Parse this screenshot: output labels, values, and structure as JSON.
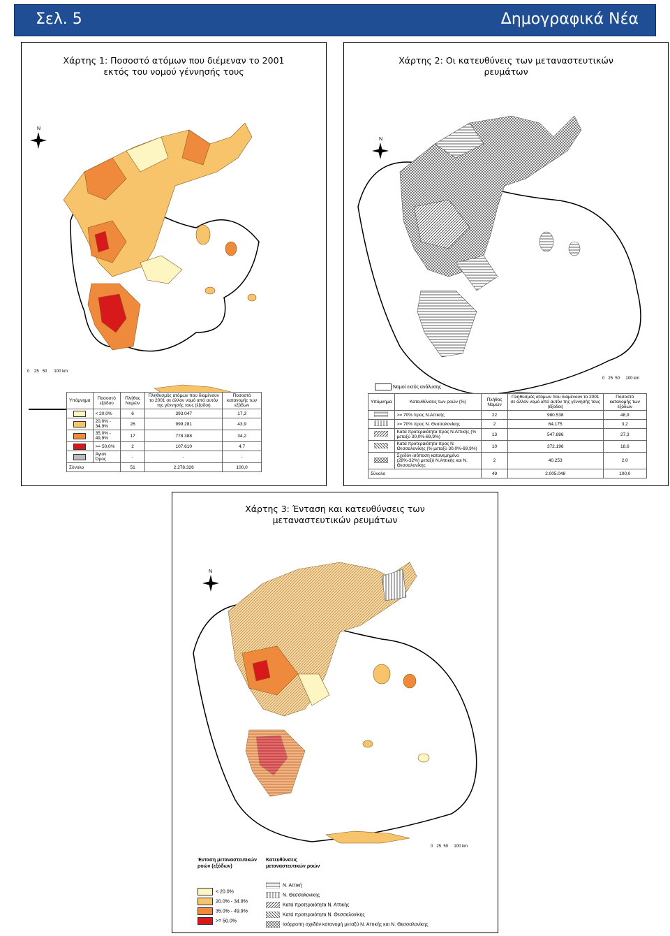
{
  "header": {
    "page": "Σελ. 5",
    "title": "Δημογραφικά Νέα"
  },
  "map1": {
    "title_line1": "Χάρτης 1: Ποσοστό ατόμων που διέμεναν το 2001",
    "title_line2": "εκτός του νομού γέννησής τους",
    "north": "N",
    "scale": [
      "0",
      "25",
      "50",
      "100 km"
    ],
    "legend": {
      "headers": [
        "Υπόμνημα",
        "Ποσοστό εξόδου",
        "Πλήθος Νομών",
        "Πληθυσμός ατόμων που διαμένουν το 2001 σε άλλον νομό από αυτόν της γέννησής τους (έξοδοι)",
        "Ποσοστό κατανομής των εξόδων"
      ],
      "rows": [
        {
          "label": "< 20,0%",
          "count": "6",
          "pop": "393.047",
          "share": "17,3",
          "color": "#fdf6c3"
        },
        {
          "label": "20,0% - 34,9%",
          "count": "26",
          "pop": "999.281",
          "share": "43,9",
          "color": "#f7c36b"
        },
        {
          "label": "35,0% - 49,9%",
          "count": "17",
          "pop": "778.388",
          "share": "34,2",
          "color": "#ef8a3c"
        },
        {
          "label": ">= 50,0%",
          "count": "2",
          "pop": "107.610",
          "share": "4,7",
          "color": "#d7191c"
        },
        {
          "label": "Άγιον Όρος",
          "count": "-",
          "pop": "-",
          "share": "-",
          "color": "#999999"
        }
      ],
      "total": {
        "label": "Σύνολο",
        "count": "51",
        "pop": "2.278.326",
        "share": "100,0"
      }
    }
  },
  "map2": {
    "title_line1": "Χάρτης 2: Οι κατευθύνεις των μεταναστευτικών",
    "title_line2": "ρευμάτων",
    "north": "N",
    "scale": [
      "0",
      "25",
      "50",
      "100 km"
    ],
    "not_analysed": "Νομοί εκτός ανάλυσης",
    "legend": {
      "headers": [
        "Υπόμνημα",
        "Κατευθύνσεις των ροών (%)",
        "Πλήθος Νομών",
        "Πληθυσμός ατόμων που διαμένουν το 2001 σε άλλον νομό από αυτόν της γέννησής τους (έξοδοι)",
        "Ποσοστό κατανομής των εξόδων"
      ],
      "rows": [
        {
          "label": ">= 70% προς Ν.Αττικής",
          "count": "22",
          "pop": "980.538",
          "share": "48,9"
        },
        {
          "label": ">= 70% προς Ν. Θεσσαλονίκης",
          "count": "2",
          "pop": "64.175",
          "share": "3,2"
        },
        {
          "label": "Κατά προτεραιότητα προς Ν.Αττικής (% μεταξύ 30,0%-69,9%)",
          "count": "13",
          "pop": "547.886",
          "share": "27,3"
        },
        {
          "label": "Κατά προτεραιότητα προς Ν. Θεσσαλονίκης (% μεταξύ 30,0%-69,9%)",
          "count": "10",
          "pop": "372.196",
          "share": "18,6"
        },
        {
          "label": "Σχεδόν ισόποση κατανεμημένο (28%-32%) μεταξύ Ν.Αττικής και Ν. Θεσσαλονίκης",
          "count": "2",
          "pop": "40.253",
          "share": "2,0"
        }
      ],
      "total": {
        "label": "Σύνολο",
        "count": "49",
        "pop": "2.005.048",
        "share": "100,0"
      }
    }
  },
  "map3": {
    "title_line1": "Χάρτης 3: Ένταση και κατευθύνσεις των",
    "title_line2": "μεταναστευτικών ρευμάτων",
    "north": "N",
    "scale": [
      "0",
      "25",
      "50",
      "100 km"
    ],
    "intensity_title": "Ένταση μεταναστευτικών ροών (εξόδων)",
    "direction_title": "Κατευθύνσεις μεταναστευτικών ροών",
    "intensity": [
      {
        "label": "< 20.0%",
        "color": "#fdf6c3"
      },
      {
        "label": "20.0% - 34.9%",
        "color": "#f7c36b"
      },
      {
        "label": "35.0% - 49.9%",
        "color": "#ef8a3c"
      },
      {
        "label": ">= 50.0%",
        "color": "#d7191c"
      }
    ],
    "directions": [
      "Ν. Αττική",
      "Ν. Θεσσαλονίκης",
      "Κατά προτεραιότητα Ν. Αττικής",
      "Κατά προτεραιότητα Ν. Θεσσαλονίκης",
      "Ισόρροπη σχεδόν κατανομή μεταξύ Ν. Αττικής και Ν. Θεσσαλονίκης"
    ]
  }
}
